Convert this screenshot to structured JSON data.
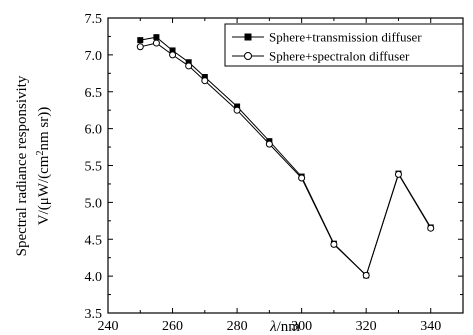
{
  "chart_data": {
    "type": "line",
    "x_axis": {
      "label_symbol": "λ",
      "label_unit": "/nm",
      "range": [
        240,
        350
      ],
      "ticks": [
        "240",
        "260",
        "280",
        "300",
        "320",
        "340"
      ]
    },
    "y_axis": {
      "label_line1": "Spectral radiance responsivity",
      "label_line2_pre": "V/(μW/(cm",
      "label_line2_sup": "2",
      "label_line2_post": "nm sr))",
      "range": [
        3.5,
        7.5
      ],
      "ticks": [
        "3.5",
        "4.0",
        "4.5",
        "5.0",
        "5.5",
        "6.0",
        "6.5",
        "7.0",
        "7.5"
      ]
    },
    "grid": false,
    "legend_position": "top-right",
    "series": [
      {
        "name": "Sphere+transmission diffuser",
        "marker": "filled-square",
        "x": [
          250,
          255,
          260,
          265,
          270,
          280,
          290,
          300,
          310,
          320,
          330,
          340
        ],
        "y": [
          7.2,
          7.24,
          7.06,
          6.9,
          6.7,
          6.3,
          5.83,
          5.35,
          4.44,
          4.01,
          5.39,
          4.66
        ]
      },
      {
        "name": "Sphere+spectralon diffuser",
        "marker": "open-circle",
        "x": [
          250,
          255,
          260,
          265,
          270,
          280,
          290,
          300,
          310,
          320,
          330,
          340
        ],
        "y": [
          7.11,
          7.16,
          7.0,
          6.85,
          6.65,
          6.25,
          5.79,
          5.33,
          4.43,
          4.01,
          5.38,
          4.65
        ]
      }
    ]
  }
}
